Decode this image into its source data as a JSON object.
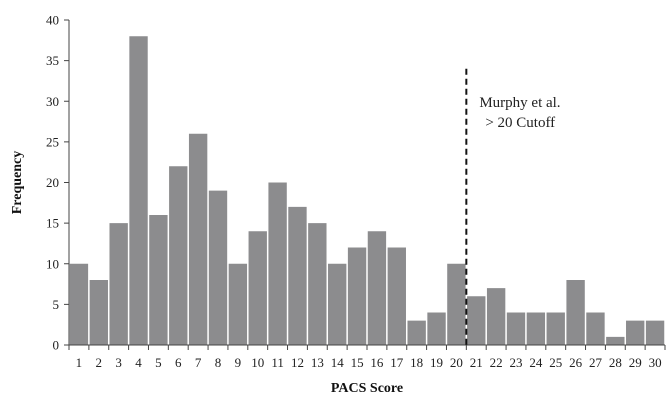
{
  "chart_data": {
    "type": "bar",
    "xlabel": "PACS Score",
    "ylabel": "Frequency",
    "ylim": [
      0,
      40
    ],
    "yticks": [
      0,
      5,
      10,
      15,
      20,
      25,
      30,
      35,
      40
    ],
    "grid": false,
    "legend": "none",
    "bar_color": "#8c8c8e",
    "categories": [
      "1",
      "2",
      "3",
      "4",
      "5",
      "6",
      "7",
      "8",
      "9",
      "10",
      "11",
      "12",
      "13",
      "14",
      "15",
      "16",
      "17",
      "18",
      "19",
      "20",
      "21",
      "22",
      "23",
      "24",
      "25",
      "26",
      "27",
      "28",
      "29",
      "30"
    ],
    "values": [
      10,
      8,
      15,
      38,
      16,
      22,
      26,
      19,
      10,
      14,
      20,
      17,
      15,
      10,
      12,
      14,
      12,
      3,
      4,
      10,
      6,
      7,
      4,
      4,
      4,
      8,
      4,
      1,
      3,
      3
    ],
    "cutoff": {
      "x_between": [
        20,
        21
      ],
      "y_top": 34,
      "style": "dashed",
      "label_lines": [
        "Murphy et al.",
        "> 20 Cutoff"
      ]
    }
  }
}
